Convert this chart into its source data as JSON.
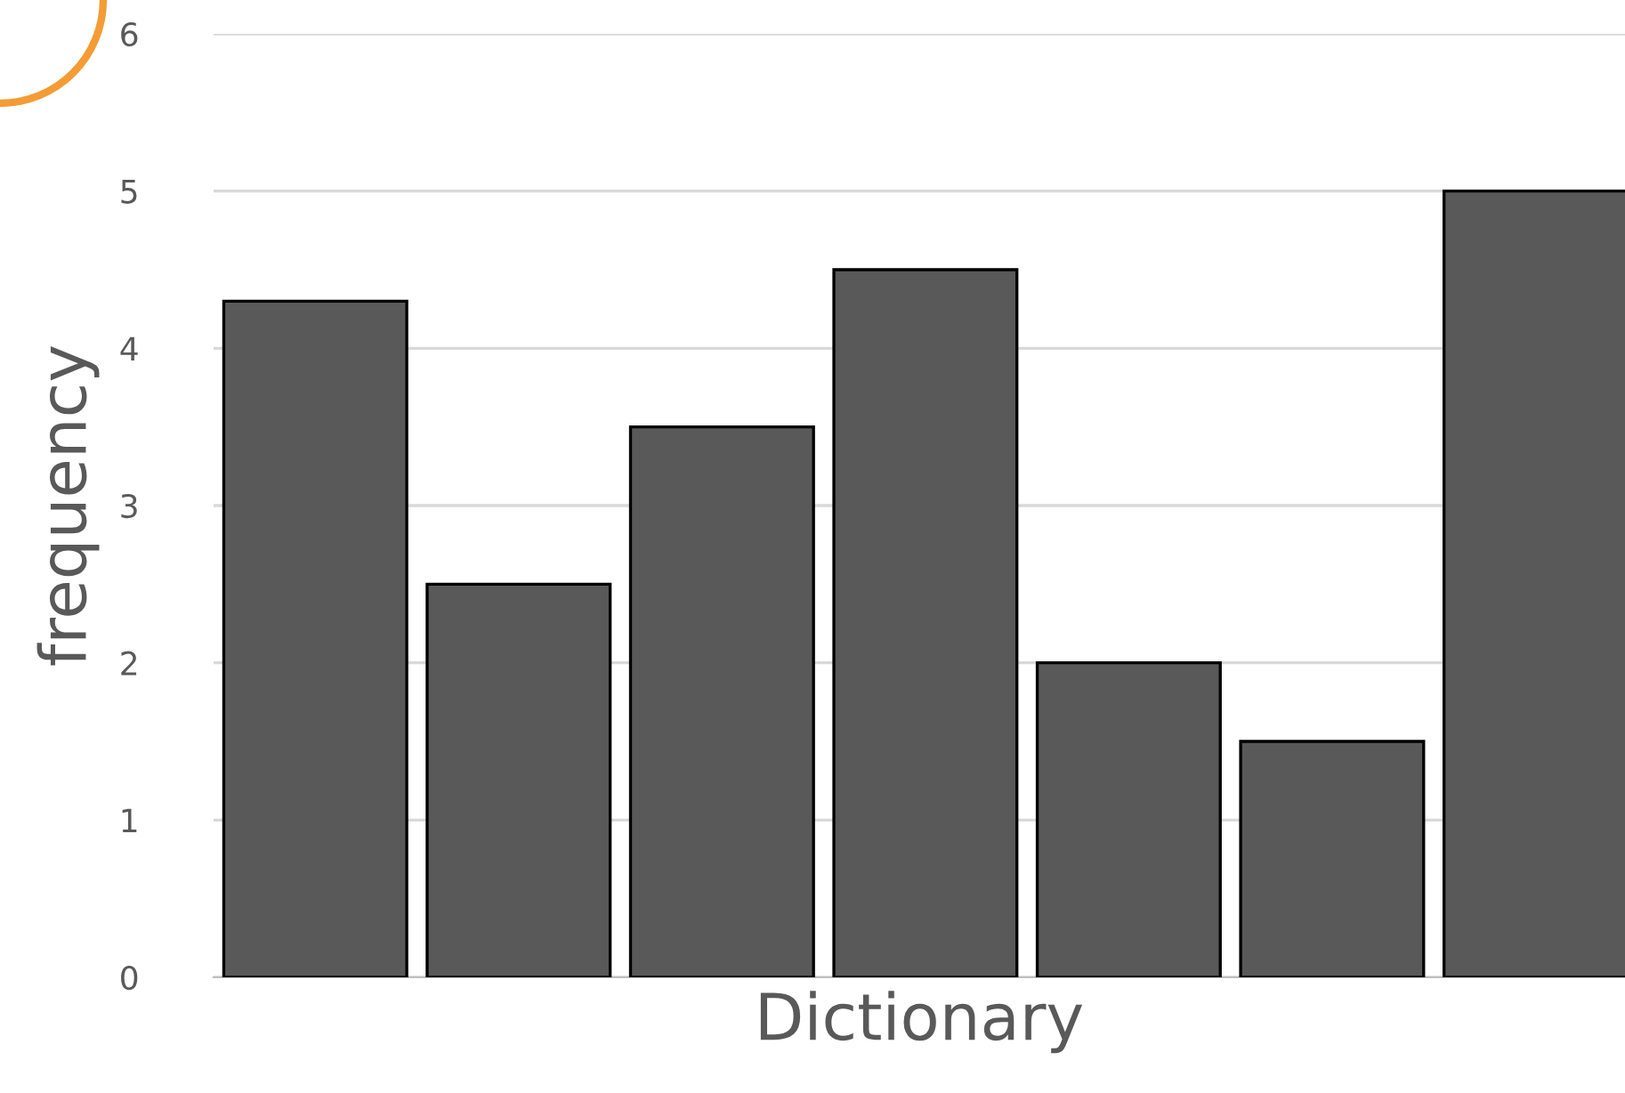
{
  "chart_data": {
    "type": "bar",
    "xlabel": "Dictionary",
    "ylabel": "frequency",
    "categories": [
      null,
      null,
      null,
      null,
      null,
      null,
      null
    ],
    "values": [
      4.3,
      2.5,
      3.5,
      4.5,
      2,
      1.5,
      5
    ],
    "color": "#595959",
    "ylim": [
      0,
      6
    ],
    "yticks": [
      0,
      1,
      2,
      3,
      4,
      5,
      6
    ],
    "grid": "y"
  }
}
